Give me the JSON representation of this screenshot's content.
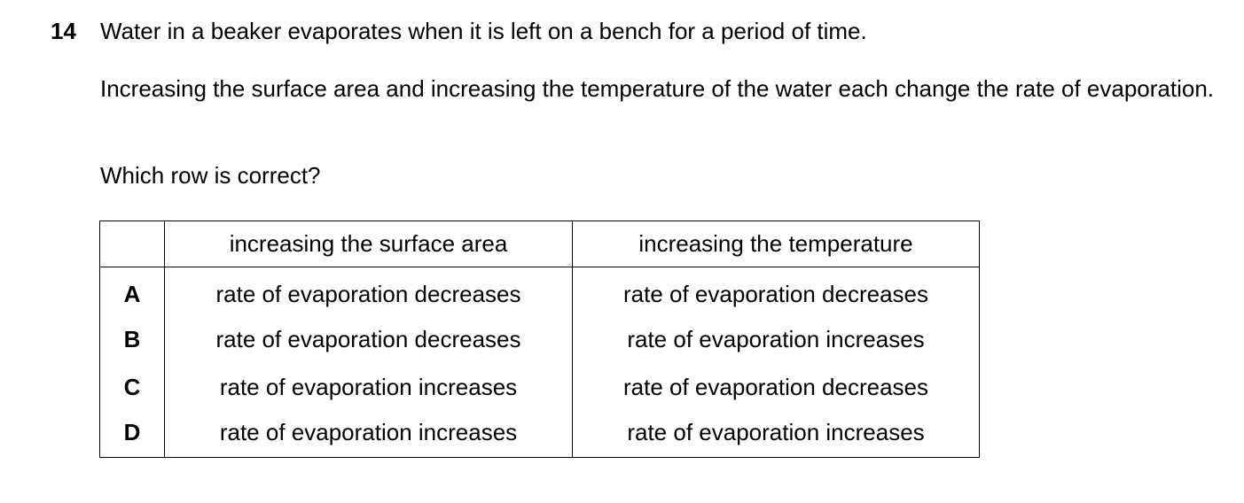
{
  "question": {
    "number": "14",
    "stem": "Water in a beaker evaporates when it is left on a bench for a period of time.",
    "info": "Increasing the surface area and increasing the temperature of the water each change the rate of evaporation.",
    "prompt": "Which row is correct?"
  },
  "table": {
    "headers": [
      "",
      "increasing the surface area",
      "increasing the temperature"
    ],
    "rows": [
      {
        "key": "A",
        "surface_area": "rate of evaporation decreases",
        "temperature": "rate of evaporation decreases"
      },
      {
        "key": "B",
        "surface_area": "rate of evaporation decreases",
        "temperature": "rate of evaporation increases"
      },
      {
        "key": "C",
        "surface_area": "rate of evaporation increases",
        "temperature": "rate of evaporation decreases"
      },
      {
        "key": "D",
        "surface_area": "rate of evaporation increases",
        "temperature": "rate of evaporation increases"
      }
    ]
  }
}
